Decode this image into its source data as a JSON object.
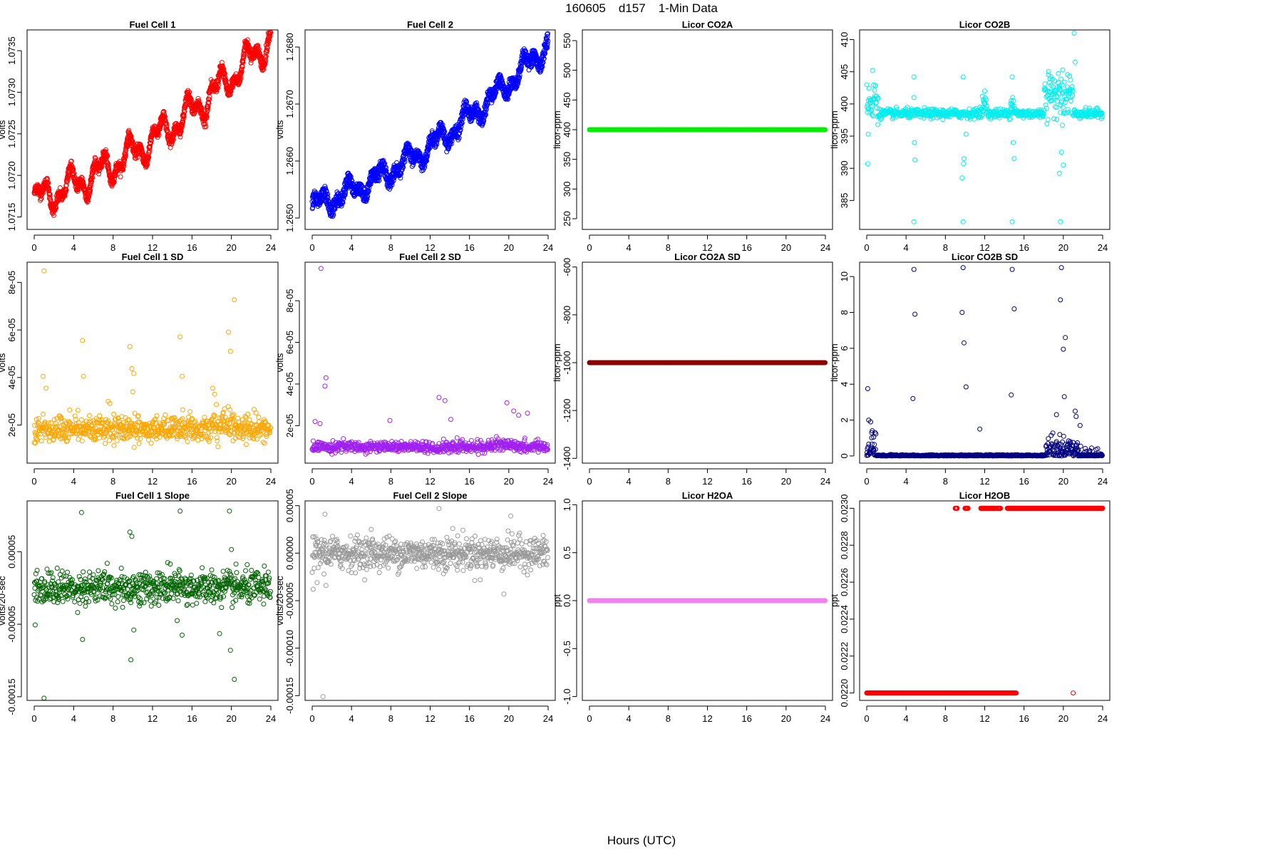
{
  "figure": {
    "title_parts": [
      "160605",
      "d157",
      "1-Min Data"
    ],
    "xlabel": "Hours (UTC)"
  },
  "chart_data": [
    {
      "type": "scatter",
      "title": "Fuel Cell 1",
      "ylabel": "volts",
      "color": "#ff0000",
      "xlim": [
        0,
        24
      ],
      "xticks": [
        0,
        4,
        8,
        12,
        16,
        20,
        24
      ],
      "ylim": [
        1.07135,
        1.07375
      ],
      "yticks": [
        "1.0715",
        "1.0720",
        "1.0725",
        "1.0730",
        "1.0735"
      ],
      "gen": "trend",
      "params": {
        "start": 1.0717,
        "end": 1.07365,
        "noise": 6e-05,
        "wave": 0.00015,
        "band": 5e-05
      }
    },
    {
      "type": "scatter",
      "title": "Fuel Cell 2",
      "ylabel": "volts",
      "color": "#0000ff",
      "xlim": [
        0,
        24
      ],
      "xticks": [
        0,
        4,
        8,
        12,
        16,
        20,
        24
      ],
      "ylim": [
        1.2648,
        1.2683
      ],
      "yticks": [
        "1.2650",
        "1.2660",
        "1.2670",
        "1.2680"
      ],
      "gen": "trend",
      "params": {
        "start": 1.2652,
        "end": 1.26805,
        "noise": 8e-05,
        "wave": 0.00015,
        "band": 0.00012
      }
    },
    {
      "type": "scatter",
      "title": "Licor CO2A",
      "ylabel": "licor-ppm",
      "color": "#00ee00",
      "xlim": [
        0,
        24
      ],
      "xticks": [
        0,
        4,
        8,
        12,
        16,
        20,
        24
      ],
      "ylim": [
        232,
        568
      ],
      "yticks": [
        "250",
        "300",
        "350",
        "400",
        "450",
        "500",
        "550"
      ],
      "gen": "constant",
      "params": {
        "value": 400
      }
    },
    {
      "type": "scatter",
      "title": "Licor CO2B",
      "ylabel": "licor-ppm",
      "color": "#00eeee",
      "xlim": [
        0,
        24
      ],
      "xticks": [
        0,
        4,
        8,
        12,
        16,
        20,
        24
      ],
      "ylim": [
        380.5,
        411.5
      ],
      "yticks": [
        "385",
        "390",
        "395",
        "400",
        "405",
        "410"
      ],
      "gen": "co2b",
      "params": {
        "base": 398.5,
        "outliers": [
          [
            0.1,
            390.7
          ],
          [
            0.15,
            395.3
          ],
          [
            0.6,
            405.2
          ],
          [
            4.8,
            404.2
          ],
          [
            4.8,
            401.0
          ],
          [
            4.85,
            394.0
          ],
          [
            4.9,
            391.3
          ],
          [
            4.8,
            381.7
          ],
          [
            9.8,
            404.2
          ],
          [
            9.9,
            391.5
          ],
          [
            9.85,
            390.7
          ],
          [
            9.7,
            388.5
          ],
          [
            10.1,
            395.3
          ],
          [
            9.8,
            381.7
          ],
          [
            14.8,
            404.2
          ],
          [
            14.85,
            401.0
          ],
          [
            14.9,
            394.0
          ],
          [
            15.0,
            391.5
          ],
          [
            14.8,
            381.7
          ],
          [
            19.7,
            381.7
          ],
          [
            19.8,
            392.5
          ],
          [
            20.0,
            390.5
          ],
          [
            19.6,
            389.2
          ],
          [
            19.9,
            396.7
          ],
          [
            21.1,
            411.0
          ],
          [
            21.2,
            406.5
          ],
          [
            12.0,
            402.0
          ],
          [
            18.5,
            404.5
          ]
        ]
      }
    },
    {
      "type": "scatter",
      "title": "Fuel Cell 1 SD",
      "ylabel": "volts",
      "color": "#ffa500",
      "xlim": [
        0,
        24
      ],
      "xticks": [
        0,
        4,
        8,
        12,
        16,
        20,
        24
      ],
      "ylim": [
        4e-06,
        8.85e-05
      ],
      "yticks": [
        "2e-05",
        "4e-05",
        "6e-05",
        "8e-05"
      ],
      "yvals": [
        2e-05,
        4e-05,
        6e-05,
        8e-05
      ],
      "gen": "noise_floor",
      "params": {
        "base": 1.6e-05,
        "spread": 5e-06,
        "min": 9e-06,
        "outliers": [
          [
            1.0,
            8.48e-05
          ],
          [
            20.3,
            7.27e-05
          ],
          [
            19.7,
            5.91e-05
          ],
          [
            14.8,
            5.71e-05
          ],
          [
            4.9,
            5.56e-05
          ],
          [
            9.7,
            5.3e-05
          ],
          [
            19.9,
            5.1e-05
          ],
          [
            9.9,
            4.37e-05
          ],
          [
            10.1,
            4.17e-05
          ],
          [
            0.9,
            4.05e-05
          ],
          [
            5.0,
            4.05e-05
          ],
          [
            15.0,
            4.05e-05
          ],
          [
            1.2,
            3.55e-05
          ],
          [
            10.0,
            3.4e-05
          ],
          [
            7.5,
            3e-05
          ],
          [
            18.1,
            3.55e-05
          ],
          [
            18.3,
            3.3e-05
          ]
        ]
      }
    },
    {
      "type": "scatter",
      "title": "Fuel Cell 2 SD",
      "ylabel": "volts",
      "color": "#a020f0",
      "xlim": [
        0,
        24
      ],
      "xticks": [
        0,
        4,
        8,
        12,
        16,
        20,
        24
      ],
      "ylim": [
        2e-06,
        9.85e-05
      ],
      "yticks": [
        "2e-05",
        "4e-05",
        "6e-05",
        "8e-05"
      ],
      "yvals": [
        2e-05,
        4e-05,
        6e-05,
        8e-05
      ],
      "gen": "noise_floor",
      "params": {
        "base": 8.5e-06,
        "spread": 2.5e-06,
        "min": 4e-06,
        "outliers": [
          [
            0.9,
            9.55e-05
          ],
          [
            1.4,
            4.3e-05
          ],
          [
            1.3,
            3.9e-05
          ],
          [
            12.9,
            3.35e-05
          ],
          [
            13.5,
            3.2e-05
          ],
          [
            19.8,
            3.1e-05
          ],
          [
            21.9,
            2.6e-05
          ],
          [
            0.8,
            2.1e-05
          ],
          [
            0.3,
            2.2e-05
          ],
          [
            7.9,
            2.25e-05
          ],
          [
            14.1,
            2.3e-05
          ],
          [
            20.5,
            2.7e-05
          ],
          [
            21.0,
            2.5e-05
          ]
        ]
      }
    },
    {
      "type": "scatter",
      "title": "Licor CO2A SD",
      "ylabel": "licor-ppm",
      "color": "#8b0000",
      "xlim": [
        0,
        24
      ],
      "xticks": [
        0,
        4,
        8,
        12,
        16,
        20,
        24
      ],
      "ylim": [
        -1420,
        -580
      ],
      "yticks": [
        "-1400",
        "-1200",
        "-1000",
        "-800",
        "-600"
      ],
      "gen": "constant",
      "params": {
        "value": -1000
      }
    },
    {
      "type": "scatter",
      "title": "Licor CO2B SD",
      "ylabel": "licor-ppm",
      "color": "#000080",
      "xlim": [
        0,
        24
      ],
      "xticks": [
        0,
        4,
        8,
        12,
        16,
        20,
        24
      ],
      "ylim": [
        -0.4,
        10.8
      ],
      "yticks": [
        "0",
        "2",
        "4",
        "6",
        "8",
        "10"
      ],
      "gen": "co2bsd",
      "params": {
        "outliers": [
          [
            0.1,
            3.75
          ],
          [
            0.2,
            2.0
          ],
          [
            0.4,
            1.9
          ],
          [
            0.5,
            1.3
          ],
          [
            0.7,
            1.05
          ],
          [
            4.8,
            10.4
          ],
          [
            4.9,
            7.9
          ],
          [
            4.7,
            3.2
          ],
          [
            9.8,
            10.5
          ],
          [
            9.9,
            6.3
          ],
          [
            10.1,
            3.85
          ],
          [
            9.7,
            8.0
          ],
          [
            14.8,
            10.4
          ],
          [
            15.0,
            8.2
          ],
          [
            14.7,
            3.4
          ],
          [
            19.8,
            10.5
          ],
          [
            19.7,
            8.7
          ],
          [
            20.0,
            5.95
          ],
          [
            20.2,
            6.6
          ],
          [
            20.1,
            3.3
          ],
          [
            21.2,
            2.5
          ],
          [
            21.3,
            2.2
          ],
          [
            19.3,
            2.3
          ],
          [
            21.7,
            1.7
          ],
          [
            11.5,
            1.5
          ]
        ]
      }
    },
    {
      "type": "scatter",
      "title": "Fuel Cell 1 Slope",
      "ylabel": "volts/20-sec",
      "color": "#006400",
      "xlim": [
        0,
        24
      ],
      "xticks": [
        0,
        4,
        8,
        12,
        16,
        20,
        24
      ],
      "ylim": [
        -0.000155,
        0.00012
      ],
      "yticks": [
        "-0.00015",
        "-0.00005",
        "0.00005"
      ],
      "yvals": [
        -0.00015,
        -5e-05,
        5e-05
      ],
      "gen": "noise_sym",
      "params": {
        "spread": 1.15e-05,
        "outliers": [
          [
            1.0,
            -0.000152
          ],
          [
            4.8,
            0.000104
          ],
          [
            14.8,
            0.000106
          ],
          [
            19.8,
            0.000106
          ],
          [
            9.7,
            7.7e-05
          ],
          [
            9.9,
            7.1e-05
          ],
          [
            20.0,
            5.3e-05
          ],
          [
            4.9,
            -7.1e-05
          ],
          [
            10.1,
            -5.8e-05
          ],
          [
            15.0,
            -6.5e-05
          ],
          [
            9.8,
            -9.9e-05
          ],
          [
            19.9,
            -8.6e-05
          ],
          [
            20.3,
            -0.000126
          ],
          [
            18.8,
            -6.3e-05
          ],
          [
            0.1,
            -5.1e-05
          ],
          [
            14.5,
            -4.5e-05
          ],
          [
            7.4,
            3.4e-05
          ],
          [
            13.8,
            3.3e-05
          ]
        ]
      }
    },
    {
      "type": "scatter",
      "title": "Fuel Cell 2 Slope",
      "ylabel": "volts/20-sec",
      "color": "#999999",
      "xlim": [
        0,
        24
      ],
      "xticks": [
        0,
        4,
        8,
        12,
        16,
        20,
        24
      ],
      "ylim": [
        -0.000155,
        5.5e-05
      ],
      "yticks": [
        "-0.00015",
        "-0.00010",
        "-0.00005",
        "0.00000",
        "0.00005"
      ],
      "yvals": [
        -0.00015,
        -0.0001,
        -5e-05,
        0,
        5e-05
      ],
      "gen": "noise_sym",
      "params": {
        "spread": 8.5e-06,
        "outliers": [
          [
            1.1,
            -0.000151
          ],
          [
            1.3,
            4.1e-05
          ],
          [
            12.9,
            4.7e-05
          ],
          [
            20.2,
            3.9e-05
          ],
          [
            19.5,
            -4.3e-05
          ],
          [
            0.1,
            -3.8e-05
          ],
          [
            0.5,
            -3.1e-05
          ],
          [
            1.4,
            -3.4e-05
          ],
          [
            6.0,
            2.5e-05
          ],
          [
            14.3,
            2.6e-05
          ],
          [
            17.1,
            -2.8e-05
          ]
        ]
      }
    },
    {
      "type": "scatter",
      "title": "Licor H2OA",
      "ylabel": "ppt",
      "color": "#ee82ee",
      "xlim": [
        0,
        24
      ],
      "xticks": [
        0,
        4,
        8,
        12,
        16,
        20,
        24
      ],
      "ylim": [
        -1.04,
        1.04
      ],
      "yticks": [
        "-1.0",
        "-0.5",
        "0.0",
        "0.5",
        "1.0"
      ],
      "yvals": [
        -1,
        -0.5,
        0,
        0.5,
        1
      ],
      "gen": "constant",
      "params": {
        "value": 0
      }
    },
    {
      "type": "scatter",
      "title": "Licor H2OB",
      "ylabel": "ppt",
      "color": "#ff0000",
      "xlim": [
        0,
        24
      ],
      "xticks": [
        0,
        4,
        8,
        12,
        16,
        20,
        24
      ],
      "ylim": [
        0.02196,
        0.02304
      ],
      "yticks": [
        "0.0220",
        "0.0222",
        "0.0224",
        "0.0226",
        "0.0228",
        "0.0230"
      ],
      "yvals": [
        0.022,
        0.0222,
        0.0224,
        0.0226,
        0.0228,
        0.023
      ],
      "gen": "binary",
      "params": {
        "low": 0.022,
        "high": 0.023,
        "low_ranges": [
          [
            0,
            15.2
          ]
        ],
        "high_ranges": [
          [
            9.0,
            9.2
          ],
          [
            10.0,
            10.3
          ],
          [
            11.6,
            12.3
          ],
          [
            12.4,
            13.1
          ],
          [
            13.3,
            13.6
          ],
          [
            14.3,
            24.0
          ]
        ],
        "extra": [
          [
            21.0,
            0.022
          ]
        ]
      }
    }
  ]
}
